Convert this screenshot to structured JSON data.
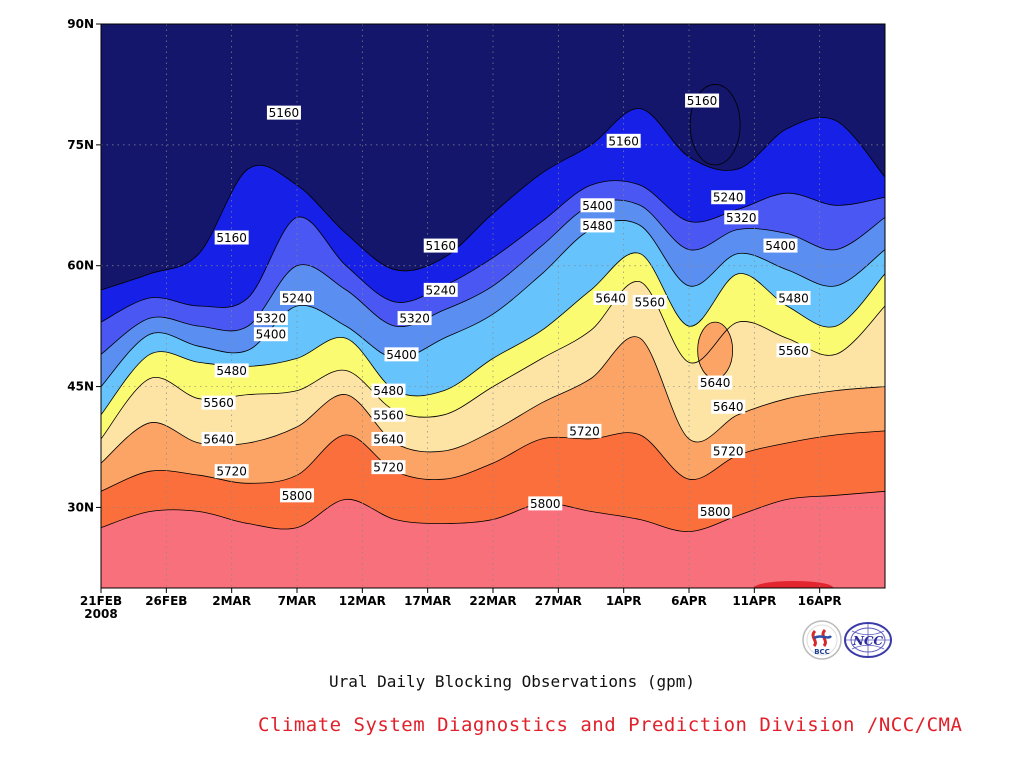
{
  "chart_data": {
    "type": "heatmap",
    "subtype": "filled-contour",
    "title": "Ural Daily Blocking Observations (gpm)",
    "credit": "Climate System Diagnostics and Prediction Division /NCC/CMA",
    "x_axis": {
      "ticks": [
        "21FEB",
        "26FEB",
        "2MAR",
        "7MAR",
        "12MAR",
        "17MAR",
        "22MAR",
        "27MAR",
        "1APR",
        "6APR",
        "11APR",
        "16APR"
      ],
      "year_label": "2008",
      "range": [
        "2008-02-21",
        "2008-04-21"
      ]
    },
    "y_axis": {
      "ticks": [
        "30N",
        "45N",
        "60N",
        "75N",
        "90N"
      ],
      "range": [
        20,
        90
      ]
    },
    "grid": true,
    "contour_levels": [
      5160,
      5240,
      5320,
      5400,
      5480,
      5560,
      5640,
      5720,
      5800
    ],
    "colors": [
      "#14166b",
      "#1620e6",
      "#4a57f2",
      "#5a8ef0",
      "#66c3fb",
      "#fbfb72",
      "#fde4a5",
      "#fba466",
      "#fb6f3d",
      "#f7707c",
      "#e32530"
    ],
    "isolines": [
      {
        "level": 5800,
        "lat": [
          27.5,
          29.5,
          29.5,
          28,
          27.5,
          31,
          28.5,
          28,
          28.5,
          30.5,
          29.5,
          28.5,
          27,
          29,
          31,
          31.5,
          32
        ]
      },
      {
        "level": 5720,
        "lat": [
          32,
          34.5,
          34,
          33,
          34,
          39,
          34.5,
          33.5,
          35.5,
          38.5,
          38.5,
          39,
          33.5,
          36.5,
          38,
          39,
          39.5
        ]
      },
      {
        "level": 5640,
        "lat": [
          35.5,
          40.5,
          38,
          38,
          40,
          44,
          38,
          37,
          39.5,
          43,
          46,
          51,
          38.5,
          41.5,
          43.5,
          44.5,
          45
        ]
      },
      {
        "level": 5560,
        "lat": [
          38.5,
          46,
          43.5,
          44,
          44.5,
          47,
          42,
          41.5,
          45,
          48.5,
          52,
          58,
          48,
          53,
          51,
          49,
          55
        ]
      },
      {
        "level": 5480,
        "lat": [
          41.5,
          49,
          48,
          47.5,
          48.5,
          51,
          44.5,
          44.5,
          48.5,
          52,
          57,
          61.5,
          52.5,
          59,
          55,
          52.5,
          59
        ]
      },
      {
        "level": 5400,
        "lat": [
          45,
          51.5,
          50,
          49.5,
          55,
          52.5,
          48.5,
          51,
          54,
          59,
          64.5,
          65,
          57.5,
          61.5,
          59.5,
          57.5,
          62
        ]
      },
      {
        "level": 5320,
        "lat": [
          49,
          53.5,
          52.5,
          52.5,
          60,
          57,
          52.5,
          54.5,
          57.5,
          62.5,
          67.5,
          67.5,
          62,
          64.5,
          64,
          62,
          66
        ]
      },
      {
        "level": 5240,
        "lat": [
          53,
          56,
          55,
          56,
          66,
          60,
          55.5,
          57.5,
          61,
          65.5,
          70,
          70,
          65.5,
          67,
          69,
          67.5,
          68.5
        ]
      },
      {
        "level": 5160,
        "lat": [
          57,
          59,
          61.5,
          72,
          70,
          64,
          59.5,
          61,
          66.5,
          71.5,
          75,
          79.5,
          73.5,
          72,
          77,
          78,
          71
        ]
      }
    ],
    "labels": [
      {
        "text": "5160",
        "date": "2008-03-06",
        "lat": 79
      },
      {
        "text": "5160",
        "date": "2008-03-02",
        "lat": 63.5
      },
      {
        "text": "5160",
        "date": "2008-03-18",
        "lat": 62.5
      },
      {
        "text": "5160",
        "date": "2008-04-01",
        "lat": 75.5
      },
      {
        "text": "5160",
        "date": "2008-04-07",
        "lat": 80.5
      },
      {
        "text": "5240",
        "date": "2008-03-07",
        "lat": 56
      },
      {
        "text": "5240",
        "date": "2008-03-18",
        "lat": 57
      },
      {
        "text": "5240",
        "date": "2008-04-09",
        "lat": 68.5
      },
      {
        "text": "5320",
        "date": "2008-03-05",
        "lat": 53.5
      },
      {
        "text": "5320",
        "date": "2008-03-16",
        "lat": 53.5
      },
      {
        "text": "5320",
        "date": "2008-04-10",
        "lat": 66
      },
      {
        "text": "5400",
        "date": "2008-03-05",
        "lat": 51.5
      },
      {
        "text": "5400",
        "date": "2008-03-15",
        "lat": 49
      },
      {
        "text": "5400",
        "date": "2008-03-30",
        "lat": 67.5
      },
      {
        "text": "5400",
        "date": "2008-04-13",
        "lat": 62.5
      },
      {
        "text": "5480",
        "date": "2008-03-02",
        "lat": 47
      },
      {
        "text": "5480",
        "date": "2008-03-14",
        "lat": 44.5
      },
      {
        "text": "5480",
        "date": "2008-03-30",
        "lat": 65
      },
      {
        "text": "5480",
        "date": "2008-04-14",
        "lat": 56
      },
      {
        "text": "5560",
        "date": "2008-03-01",
        "lat": 43
      },
      {
        "text": "5560",
        "date": "2008-03-14",
        "lat": 41.5
      },
      {
        "text": "5560",
        "date": "2008-04-03",
        "lat": 55.5
      },
      {
        "text": "5560",
        "date": "2008-04-14",
        "lat": 49.5
      },
      {
        "text": "5640",
        "date": "2008-03-01",
        "lat": 38.5
      },
      {
        "text": "5640",
        "date": "2008-03-14",
        "lat": 38.5
      },
      {
        "text": "5640",
        "date": "2008-03-31",
        "lat": 56
      },
      {
        "text": "5640",
        "date": "2008-04-08",
        "lat": 45.5
      },
      {
        "text": "5640",
        "date": "2008-04-09",
        "lat": 42.5
      },
      {
        "text": "5720",
        "date": "2008-03-02",
        "lat": 34.5
      },
      {
        "text": "5720",
        "date": "2008-03-14",
        "lat": 35
      },
      {
        "text": "5720",
        "date": "2008-03-29",
        "lat": 39.5
      },
      {
        "text": "5720",
        "date": "2008-04-09",
        "lat": 37
      },
      {
        "text": "5800",
        "date": "2008-03-07",
        "lat": 31.5
      },
      {
        "text": "5800",
        "date": "2008-03-26",
        "lat": 30.5
      },
      {
        "text": "5800",
        "date": "2008-04-08",
        "lat": 29.5
      }
    ],
    "closed_contours": [
      {
        "level": 5160,
        "fill": "#14166b",
        "date": "2008-04-08",
        "lat": 77.5,
        "d_lat": 5
      },
      {
        "level": 5640,
        "fill": "#fba466",
        "date": "2008-04-08",
        "lat": 49.5,
        "d_lat": 3.5
      }
    ]
  },
  "logos": {
    "left": "BCC",
    "right": "NCC"
  }
}
